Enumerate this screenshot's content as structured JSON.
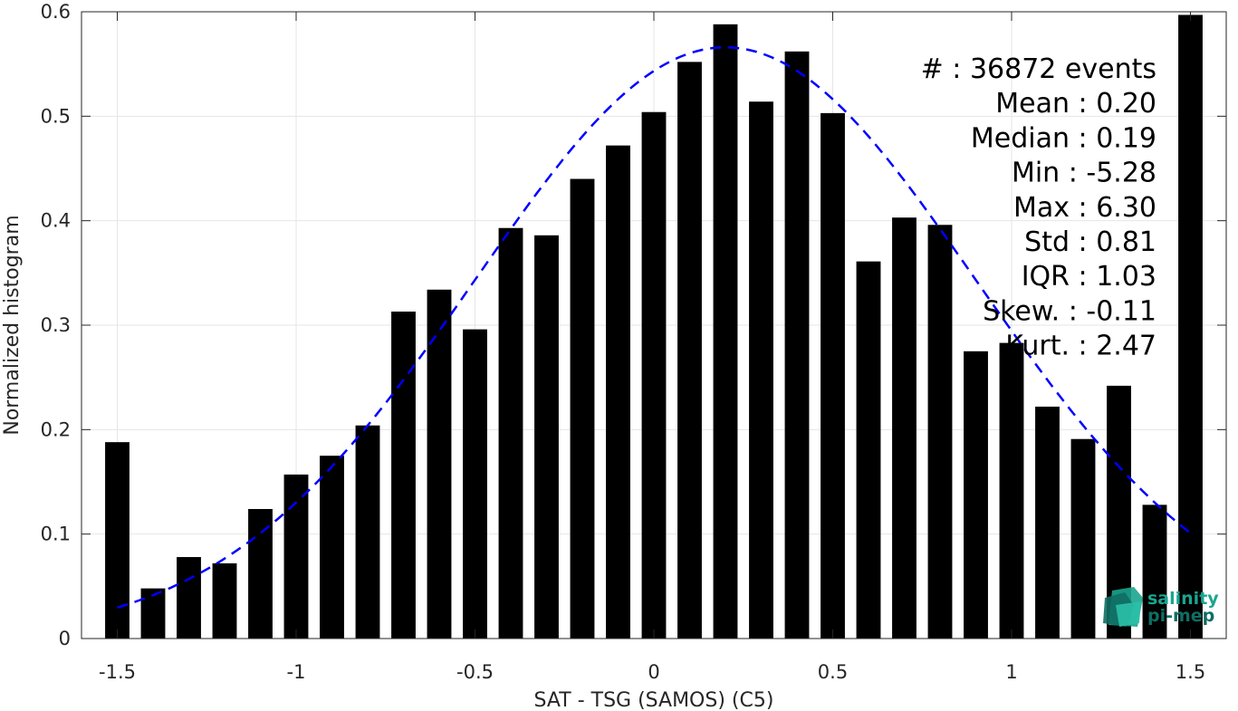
{
  "chart_data": {
    "type": "bar",
    "xlabel": "SAT - TSG (SAMOS) (C5)",
    "ylabel": "Normalized histogram",
    "xlim": [
      -1.6,
      1.6
    ],
    "ylim": [
      0,
      0.6
    ],
    "grid": true,
    "x_ticks": [
      "-1.5",
      "-1",
      "-0.5",
      "0",
      "0.5",
      "1",
      "1.5"
    ],
    "y_ticks": [
      "0",
      "0.1",
      "0.2",
      "0.3",
      "0.4",
      "0.5",
      "0.6"
    ],
    "x": [
      -1.5,
      -1.4,
      -1.3,
      -1.2,
      -1.1,
      -1.0,
      -0.9,
      -0.8,
      -0.7,
      -0.6,
      -0.5,
      -0.4,
      -0.3,
      -0.2,
      -0.1,
      0.0,
      0.1,
      0.2,
      0.3,
      0.4,
      0.5,
      0.6,
      0.7,
      0.8,
      0.9,
      1.0,
      1.1,
      1.2,
      1.3,
      1.4,
      1.5
    ],
    "values": [
      0.188,
      0.048,
      0.078,
      0.072,
      0.124,
      0.157,
      0.175,
      0.204,
      0.313,
      0.334,
      0.296,
      0.393,
      0.386,
      0.44,
      0.472,
      0.504,
      0.552,
      0.588,
      0.514,
      0.562,
      0.503,
      0.361,
      0.403,
      0.396,
      0.275,
      0.283,
      0.222,
      0.191,
      0.242,
      0.128,
      0.597
    ],
    "bar_color": "#000000",
    "fit_curve": {
      "style": "dashed",
      "color": "#0000ff",
      "mean": 0.2,
      "std": 0.7,
      "peak": 0.566,
      "x_range": [
        -1.5,
        1.5
      ]
    },
    "annotation_lines": [
      "#  : 36872 events",
      "Mean : 0.20",
      "Median : 0.19",
      "Min : -5.28",
      "Max : 6.30",
      "Std : 0.81",
      "IQR : 1.03",
      "Skew. : -0.11",
      "Kurt. : 2.47"
    ]
  },
  "logo": {
    "line1": "salinity",
    "line2": "pi-mep",
    "colors": [
      "#1aa58f",
      "#0f6e63",
      "#2bc0a8"
    ]
  }
}
